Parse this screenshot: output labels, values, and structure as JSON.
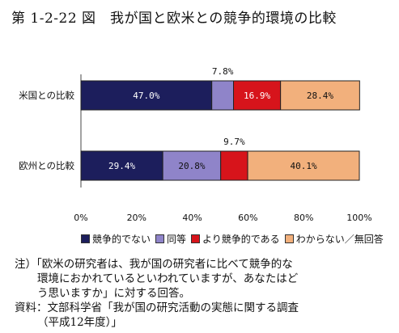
{
  "title": "第 1-2-22 図　我が国と欧米との競争的環境の比較",
  "chart_data": {
    "type": "bar",
    "orientation": "horizontal",
    "stacked": true,
    "categories": [
      "米国との比較",
      "欧州との比較"
    ],
    "series": [
      {
        "name": "競争的でない",
        "color": "#1c1e5c",
        "values": [
          47.0,
          29.4
        ],
        "labels": [
          "47.0%",
          "29.4%"
        ]
      },
      {
        "name": "同等",
        "color": "#8f84c9",
        "values": [
          7.8,
          20.8
        ],
        "labels": [
          "7.8%",
          "20.8%"
        ]
      },
      {
        "name": "より競争的である",
        "color": "#d7141b",
        "values": [
          16.9,
          9.7
        ],
        "labels": [
          "16.9%",
          "9.7%"
        ]
      },
      {
        "name": "わからない／無回答",
        "color": "#f2b07c",
        "values": [
          28.4,
          40.1
        ],
        "labels": [
          "28.4%",
          "40.1%"
        ]
      }
    ],
    "xlim": [
      0,
      100
    ],
    "xticks": [
      "0%",
      "20%",
      "40%",
      "60%",
      "80%",
      "100%"
    ],
    "legend_position": "bottom"
  },
  "notes": {
    "note_label": "注）",
    "note_line1": "「欧米の研究者は、我が国の研究者に比べて競争的な",
    "note_line2": "環境におかれているといわれていますが、あなたはど",
    "note_line3": "う思いますか」に対する回答。",
    "source_label": "資料：",
    "source_line1": "文部科学省「我が国の研究活動の実態に関する調査",
    "source_line2": "（平成12年度）」"
  }
}
